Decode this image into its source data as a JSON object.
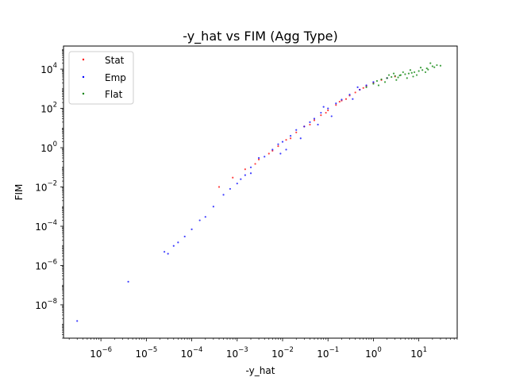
{
  "chart_data": {
    "type": "scatter",
    "title": "-y_hat vs FIM (Agg Type)",
    "xlabel": "-y_hat",
    "ylabel": "FIM",
    "xscale": "log",
    "yscale": "log",
    "xlim": [
      1.5e-07,
      70
    ],
    "ylim": [
      2e-10,
      150000.0
    ],
    "grid": false,
    "legend_position": "upper-left",
    "x_ticks": [
      {
        "value": 1e-06,
        "base": "10",
        "exp": "−6"
      },
      {
        "value": 1e-05,
        "base": "10",
        "exp": "−5"
      },
      {
        "value": 0.0001,
        "base": "10",
        "exp": "−4"
      },
      {
        "value": 0.001,
        "base": "10",
        "exp": "−3"
      },
      {
        "value": 0.01,
        "base": "10",
        "exp": "−2"
      },
      {
        "value": 0.1,
        "base": "10",
        "exp": "−1"
      },
      {
        "value": 1,
        "base": "10",
        "exp": "0"
      },
      {
        "value": 10,
        "base": "10",
        "exp": "1"
      }
    ],
    "y_ticks": [
      {
        "value": 1e-08,
        "base": "10",
        "exp": "−8"
      },
      {
        "value": 1e-06,
        "base": "10",
        "exp": "−6"
      },
      {
        "value": 0.0001,
        "base": "10",
        "exp": "−4"
      },
      {
        "value": 0.01,
        "base": "10",
        "exp": "−2"
      },
      {
        "value": 1,
        "base": "10",
        "exp": "0"
      },
      {
        "value": 100,
        "base": "10",
        "exp": "2"
      },
      {
        "value": 10000,
        "base": "10",
        "exp": "4"
      }
    ],
    "series": [
      {
        "name": "Stat",
        "color": "#ff0000",
        "points": [
          [
            0.0004,
            0.01
          ],
          [
            0.0008,
            0.03
          ],
          [
            0.0015,
            0.08
          ],
          [
            0.003,
            0.25
          ],
          [
            0.005,
            0.5
          ],
          [
            0.008,
            1.2
          ],
          [
            0.012,
            2.5
          ],
          [
            0.02,
            6
          ],
          [
            0.03,
            12
          ],
          [
            0.05,
            25
          ],
          [
            0.07,
            45
          ],
          [
            0.1,
            80
          ],
          [
            0.15,
            150
          ],
          [
            0.2,
            250
          ],
          [
            0.3,
            450
          ],
          [
            0.4,
            650
          ],
          [
            0.5,
            900
          ],
          [
            0.7,
            1400
          ],
          [
            1.0,
            2000
          ],
          [
            1.5,
            2800
          ],
          [
            2.0,
            3500
          ],
          [
            3.0,
            4200
          ],
          [
            0.015,
            3
          ],
          [
            0.04,
            15
          ],
          [
            0.09,
            60
          ],
          [
            0.25,
            300
          ],
          [
            0.6,
            1100
          ],
          [
            0.0025,
            0.15
          ],
          [
            0.006,
            0.7
          ],
          [
            0.18,
            220
          ]
        ]
      },
      {
        "name": "Emp",
        "color": "#0000ff",
        "points": [
          [
            3e-07,
            1.5e-09
          ],
          [
            4e-06,
            1.5e-07
          ],
          [
            2.5e-05,
            5e-06
          ],
          [
            3e-05,
            4e-06
          ],
          [
            4e-05,
            1e-05
          ],
          [
            5e-05,
            1.5e-05
          ],
          [
            7e-05,
            3e-05
          ],
          [
            0.0001,
            7e-05
          ],
          [
            0.00015,
            0.0002
          ],
          [
            0.0002,
            0.0003
          ],
          [
            0.0003,
            0.001
          ],
          [
            0.0005,
            0.004
          ],
          [
            0.0007,
            0.008
          ],
          [
            0.001,
            0.015
          ],
          [
            0.0015,
            0.04
          ],
          [
            0.002,
            0.1
          ],
          [
            0.003,
            0.3
          ],
          [
            0.004,
            0.35
          ],
          [
            0.006,
            0.8
          ],
          [
            0.008,
            1.5
          ],
          [
            0.01,
            2
          ],
          [
            0.015,
            4
          ],
          [
            0.02,
            8
          ],
          [
            0.03,
            12
          ],
          [
            0.04,
            20
          ],
          [
            0.05,
            30
          ],
          [
            0.07,
            60
          ],
          [
            0.1,
            100
          ],
          [
            0.15,
            180
          ],
          [
            0.2,
            280
          ],
          [
            0.3,
            500
          ],
          [
            0.5,
            900
          ],
          [
            0.7,
            1500
          ],
          [
            1.0,
            2200
          ],
          [
            2.0,
            3500
          ],
          [
            0.012,
            0.8
          ],
          [
            0.025,
            3
          ],
          [
            0.06,
            15
          ],
          [
            0.12,
            40
          ],
          [
            0.35,
            300
          ],
          [
            0.002,
            0.05
          ],
          [
            0.0012,
            0.025
          ],
          [
            0.009,
            0.5
          ],
          [
            0.45,
            1200
          ],
          [
            0.08,
            120
          ]
        ]
      },
      {
        "name": "Flat",
        "color": "#008000",
        "points": [
          [
            0.7,
            1200
          ],
          [
            1.0,
            1800
          ],
          [
            1.2,
            2500
          ],
          [
            1.5,
            3000
          ],
          [
            2.0,
            3500
          ],
          [
            2.5,
            4000
          ],
          [
            3.0,
            4500
          ],
          [
            3.5,
            3800
          ],
          [
            4.0,
            5000
          ],
          [
            5.0,
            5500
          ],
          [
            6.0,
            6000
          ],
          [
            7.0,
            6500
          ],
          [
            8.0,
            7000
          ],
          [
            10,
            8000
          ],
          [
            12,
            9000
          ],
          [
            15,
            11000
          ],
          [
            20,
            14000
          ],
          [
            25,
            16000
          ],
          [
            30,
            15000
          ],
          [
            1.8,
            2200
          ],
          [
            2.2,
            5000
          ],
          [
            3.2,
            2800
          ],
          [
            4.5,
            7000
          ],
          [
            5.5,
            3500
          ],
          [
            6.5,
            9000
          ],
          [
            9.0,
            5000
          ],
          [
            11,
            12000
          ],
          [
            14,
            7000
          ],
          [
            18,
            20000
          ],
          [
            2.8,
            6000
          ],
          [
            3.8,
            4800
          ],
          [
            7.5,
            4200
          ],
          [
            1.3,
            1500
          ],
          [
            16,
            9500
          ],
          [
            22,
            12500
          ]
        ]
      }
    ]
  }
}
